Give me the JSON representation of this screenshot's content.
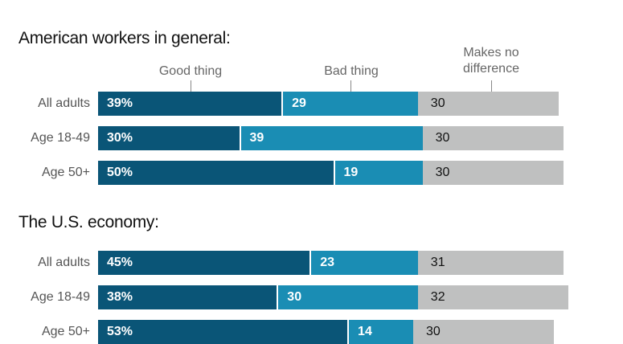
{
  "chart_data": [
    {
      "type": "bar",
      "orientation": "horizontal",
      "stacked": true,
      "title": "American workers in general:",
      "categories": [
        "All adults",
        "Age 18-49",
        "Age 50+"
      ],
      "series": [
        {
          "name": "Good thing",
          "values": [
            39,
            30,
            50
          ],
          "labels": [
            "39%",
            "30%",
            "50%"
          ]
        },
        {
          "name": "Bad thing",
          "values": [
            29,
            39,
            19
          ],
          "labels": [
            "29",
            "39",
            "19"
          ]
        },
        {
          "name": "Makes no difference",
          "values": [
            30,
            30,
            30
          ],
          "labels": [
            "30",
            "30",
            "30"
          ]
        }
      ]
    },
    {
      "type": "bar",
      "orientation": "horizontal",
      "stacked": true,
      "title": "The U.S. economy:",
      "categories": [
        "All adults",
        "Age 18-49",
        "Age 50+"
      ],
      "series": [
        {
          "name": "Good thing",
          "values": [
            45,
            38,
            53
          ],
          "labels": [
            "45%",
            "38%",
            "53%"
          ]
        },
        {
          "name": "Bad thing",
          "values": [
            23,
            30,
            14
          ],
          "labels": [
            "23",
            "30",
            "14"
          ]
        },
        {
          "name": "Makes no difference",
          "values": [
            31,
            32,
            30
          ],
          "labels": [
            "31",
            "32",
            "30"
          ]
        }
      ]
    }
  ],
  "legend": {
    "good": "Good thing",
    "bad": "Bad thing",
    "none_line1": "Makes no",
    "none_line2": "difference"
  },
  "colors": {
    "good": "#0a5577",
    "bad": "#1a8db4",
    "none": "#bfc0c0"
  }
}
